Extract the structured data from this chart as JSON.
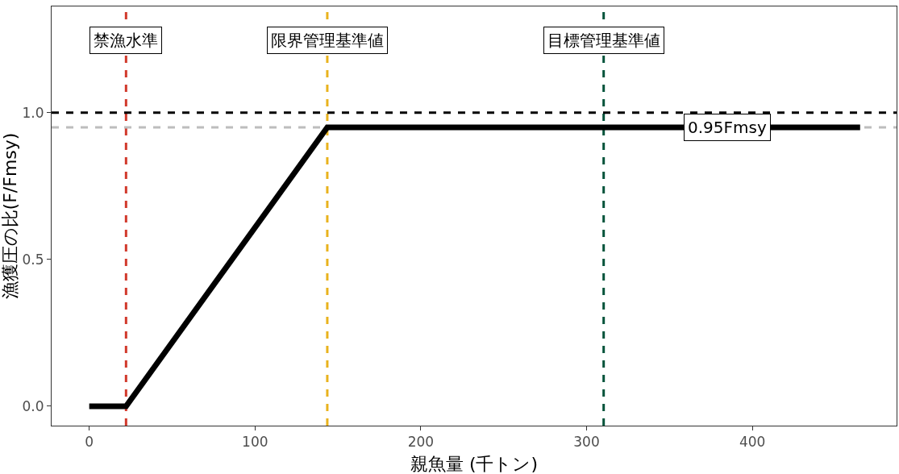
{
  "chart_data": {
    "type": "line",
    "xlabel": "親魚量 (千トン)",
    "ylabel": "漁獲圧の比(F/Fmsy)",
    "series": [
      {
        "color": "#000000",
        "x": [
          0,
          22.2,
          143.6,
          465
        ],
        "values": [
          0,
          0,
          0.95,
          0.95
        ]
      }
    ],
    "xlim": [
      -22.7,
      487
    ],
    "xticks": [
      0,
      100,
      200,
      300,
      400
    ],
    "ylim": [
      -0.066,
      1.362
    ],
    "yticks": [
      {
        "value": 0,
        "label": "0.0"
      },
      {
        "value": 0.5,
        "label": "0.5"
      },
      {
        "value": 1,
        "label": "1.0"
      }
    ],
    "ref_lines": [
      {
        "axis": "x",
        "value": 22.2,
        "label": "禁漁水準",
        "color": "#d1392b",
        "line_style": "dashed"
      },
      {
        "axis": "x",
        "value": 143.6,
        "label": "限界管理基準値",
        "color": "#e9b21d",
        "line_style": "dashed"
      },
      {
        "axis": "x",
        "value": 310.3,
        "label": "目標管理基準値",
        "color": "#00533a",
        "line_style": "dashed"
      },
      {
        "axis": "y",
        "value": 1.0,
        "color": "#000000",
        "line_style": "dashed"
      },
      {
        "axis": "y",
        "value": 0.95,
        "label": "0.95Fmsy",
        "color": "#bdbdbd",
        "line_style": "dashed"
      }
    ],
    "grid": false
  }
}
